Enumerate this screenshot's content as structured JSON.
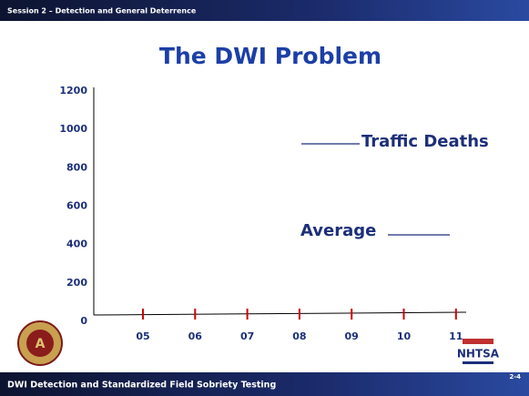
{
  "header": "Session 2 – Detection and General Deterrence",
  "title": "The DWI Problem",
  "chart_data": {
    "type": "axes",
    "categories": [
      "05",
      "06",
      "07",
      "08",
      "09",
      "10",
      "11"
    ],
    "ylim": [
      0,
      1200
    ],
    "yticks": [
      0,
      200,
      400,
      600,
      800,
      1000,
      1200
    ],
    "annotations": [
      "Traffic Deaths",
      "Average"
    ]
  },
  "footer": "DWI Detection and Standardized Field Sobriety Testing",
  "page_number": "2-4",
  "logo_text": "NHTSA"
}
